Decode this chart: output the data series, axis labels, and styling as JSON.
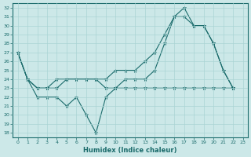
{
  "xlabel": "Humidex (Indice chaleur)",
  "bg_color": "#cce8e8",
  "grid_color": "#aad4d4",
  "line_color": "#1a6b6b",
  "xlim": [
    -0.5,
    23.5
  ],
  "ylim": [
    17.5,
    32.5
  ],
  "yticks": [
    18,
    19,
    20,
    21,
    22,
    23,
    24,
    25,
    26,
    27,
    28,
    29,
    30,
    31,
    32
  ],
  "xticks": [
    0,
    1,
    2,
    3,
    4,
    5,
    6,
    7,
    8,
    9,
    10,
    11,
    12,
    13,
    14,
    15,
    16,
    17,
    18,
    19,
    20,
    21,
    22,
    23
  ],
  "series": [
    {
      "x": [
        0,
        1,
        2,
        3,
        4,
        5,
        6,
        7,
        8,
        9,
        10,
        11,
        12,
        13,
        14,
        15,
        16,
        17,
        18,
        19,
        20,
        21,
        22
      ],
      "y": [
        27,
        24,
        22,
        22,
        22,
        21,
        22,
        20,
        18,
        22,
        23,
        24,
        24,
        24,
        25,
        28,
        31,
        32,
        30,
        30,
        28,
        25,
        23
      ]
    },
    {
      "x": [
        0,
        1,
        2,
        3,
        4,
        5,
        6,
        7,
        8,
        9,
        10,
        11,
        12,
        13,
        14,
        15,
        16,
        17,
        18,
        19,
        20,
        21,
        22
      ],
      "y": [
        27,
        24,
        23,
        23,
        23,
        24,
        24,
        24,
        24,
        24,
        25,
        25,
        25,
        26,
        27,
        29,
        31,
        31,
        30,
        30,
        28,
        25,
        23
      ]
    },
    {
      "x": [
        0,
        1,
        2,
        3,
        4,
        5,
        6,
        7,
        8,
        9,
        10,
        11,
        12,
        13,
        14,
        15,
        16,
        17,
        18,
        19,
        20,
        21,
        22
      ],
      "y": [
        27,
        24,
        23,
        23,
        24,
        24,
        24,
        24,
        24,
        23,
        23,
        23,
        23,
        23,
        23,
        23,
        23,
        23,
        23,
        23,
        23,
        23,
        23
      ]
    }
  ],
  "title_fontsize": 6,
  "tick_fontsize": 4.5,
  "xlabel_fontsize": 6
}
